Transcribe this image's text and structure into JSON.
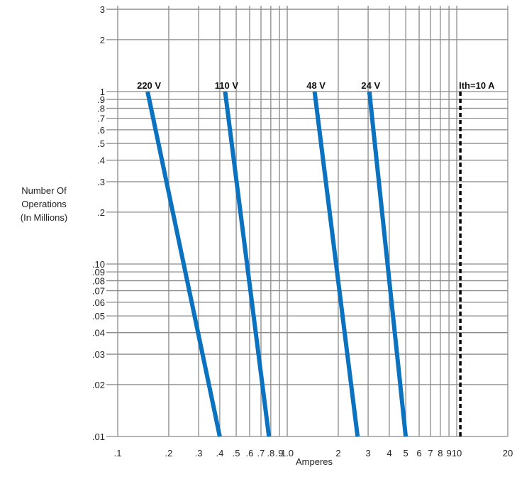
{
  "chart_data": {
    "type": "line",
    "x_scale": "log",
    "y_scale": "log",
    "xlim": [
      0.1,
      20
    ],
    "ylim": [
      0.01,
      3.5
    ],
    "grid": true,
    "xlabel": "Amperes",
    "ylabel_lines": [
      "Number Of",
      "Operations",
      "(In Millions)"
    ],
    "x_gridlines": [
      0.1,
      0.2,
      0.3,
      0.4,
      0.5,
      0.6,
      0.7,
      0.8,
      0.9,
      1,
      2,
      3,
      4,
      5,
      6,
      7,
      8,
      9,
      10,
      20
    ],
    "y_gridlines": [
      0.01,
      0.02,
      0.03,
      0.04,
      0.05,
      0.06,
      0.07,
      0.08,
      0.09,
      0.1,
      0.2,
      0.3,
      0.4,
      0.5,
      0.6,
      0.7,
      0.8,
      0.9,
      1,
      2,
      3
    ],
    "x_ticks": [
      {
        "value": 0.1,
        "label": ".1"
      },
      {
        "value": 0.2,
        "label": ".2"
      },
      {
        "value": 0.3,
        "label": ".3"
      },
      {
        "value": 0.4,
        "label": ".4"
      },
      {
        "value": 0.5,
        "label": ".5"
      },
      {
        "value": 0.6,
        "label": ".6"
      },
      {
        "value": 0.7,
        "label": ".7"
      },
      {
        "value": 0.8,
        "label": ".8"
      },
      {
        "value": 0.9,
        "label": ".9"
      },
      {
        "value": 1,
        "label": "1.0"
      },
      {
        "value": 2,
        "label": "2"
      },
      {
        "value": 3,
        "label": "3"
      },
      {
        "value": 4,
        "label": "4"
      },
      {
        "value": 5,
        "label": "5"
      },
      {
        "value": 6,
        "label": "6"
      },
      {
        "value": 7,
        "label": "7"
      },
      {
        "value": 8,
        "label": "8"
      },
      {
        "value": 9,
        "label": "9"
      },
      {
        "value": 10,
        "label": "10"
      },
      {
        "value": 20,
        "label": "20"
      }
    ],
    "y_ticks": [
      {
        "value": 0.01,
        "label": ".01"
      },
      {
        "value": 0.02,
        "label": ".02"
      },
      {
        "value": 0.03,
        "label": ".03"
      },
      {
        "value": 0.04,
        "label": ".04"
      },
      {
        "value": 0.05,
        "label": ".05"
      },
      {
        "value": 0.06,
        "label": ".06"
      },
      {
        "value": 0.07,
        "label": ".07"
      },
      {
        "value": 0.08,
        "label": ".08"
      },
      {
        "value": 0.09,
        "label": ".09"
      },
      {
        "value": 0.1,
        "label": ".10"
      },
      {
        "value": 0.2,
        "label": ".2"
      },
      {
        "value": 0.3,
        "label": ".3"
      },
      {
        "value": 0.4,
        "label": ".4"
      },
      {
        "value": 0.5,
        "label": ".5"
      },
      {
        "value": 0.6,
        "label": ".6"
      },
      {
        "value": 0.7,
        "label": ".7"
      },
      {
        "value": 0.8,
        "label": ".8"
      },
      {
        "value": 0.9,
        "label": ".9"
      },
      {
        "value": 1,
        "label": "1"
      },
      {
        "value": 2,
        "label": "2"
      },
      {
        "value": 3,
        "label": "3"
      }
    ],
    "series": [
      {
        "name": "220 V",
        "color": "#0a72be",
        "points": [
          [
            0.15,
            1.0
          ],
          [
            0.4,
            0.01
          ]
        ]
      },
      {
        "name": "110 V",
        "color": "#0a72be",
        "points": [
          [
            0.43,
            1.0
          ],
          [
            0.78,
            0.01
          ]
        ]
      },
      {
        "name": "48 V",
        "color": "#0a72be",
        "points": [
          [
            1.45,
            1.0
          ],
          [
            2.6,
            0.01
          ]
        ]
      },
      {
        "name": "24 V",
        "color": "#0a72be",
        "points": [
          [
            3.05,
            1.0
          ],
          [
            5.0,
            0.01
          ]
        ]
      }
    ],
    "reference_line": {
      "label": "Ith=10 A",
      "x": 10.5,
      "y_from": 0.01,
      "y_to": 1.0,
      "style": "dashed",
      "color": "#000000"
    }
  }
}
